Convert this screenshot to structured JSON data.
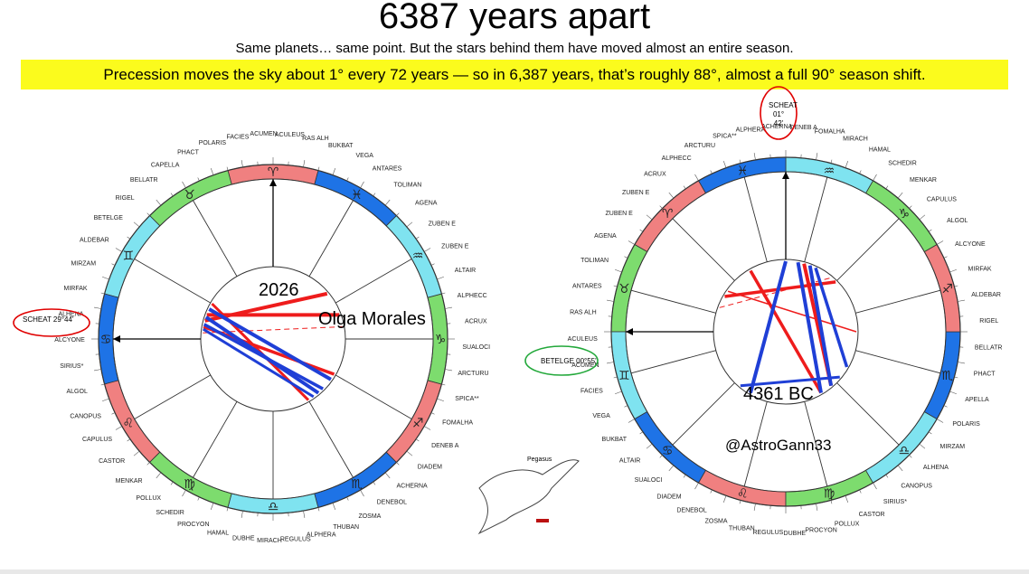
{
  "header": {
    "title": "6387 years apart",
    "subtitle": "Same planets… same point. But the stars behind them have moved almost an entire season.",
    "banner": "Precession moves the sky about 1° every 72 years — so in 6,387 years, that’s roughly 88°, almost a full 90° season shift."
  },
  "left_chart": {
    "year_label": "2026",
    "name_label": "Olga Morales",
    "highlight_star": "SCHEAT 29°44'",
    "stars": [
      "FACIES",
      "ACUMEN",
      "ACULEUS",
      "RAS ALH",
      "BUKBAT",
      "VEGA",
      "ANTARES",
      "TOLIMAN",
      "AGENA",
      "ZUBEN E",
      "ZUBEN E",
      "ALTAIR",
      "ALPHECC",
      "ACRUX",
      "SUALOCI",
      "ARCTURU",
      "SPICA**",
      "FOMALHA",
      "DENEB A",
      "DIADEM",
      "ACHERNA",
      "DENEBOL",
      "ZOSMA",
      "THUBAN",
      "ALPHERA",
      "REGULUS",
      "MIRACH",
      "DUBHE",
      "HAMAL",
      "PROCYON",
      "SCHEDIR",
      "POLLUX",
      "MENKAR",
      "CASTOR",
      "CAPULUS",
      "CANOPUS",
      "ALGOL",
      "SIRIUS*",
      "ALCYONE",
      "ALHENA",
      "MIRFAK",
      "MIRZAM",
      "ALDEBAR",
      "BETELGE",
      "RIGEL",
      "BELLATR",
      "CAPELLA",
      "PHACT",
      "POLARIS"
    ]
  },
  "right_chart": {
    "year_label": "4361 BC",
    "author_label": "@AstroGann33",
    "highlight_star_top": "SCHEAT 01° 42'",
    "highlight_star_left": "BETELGE 00°55'",
    "stars": [
      "ALPHERA",
      "ACHERNA",
      "DENEB A",
      "FOMALHA",
      "MIRACH",
      "HAMAL",
      "SCHEDIR",
      "MENKAR",
      "CAPULUS",
      "ALGOL",
      "ALCYONE",
      "MIRFAK",
      "ALDEBAR",
      "RIGEL",
      "BELLATR",
      "PHACT",
      "APELLA",
      "POLARIS",
      "MIRZAM",
      "ALHENA",
      "CANOPUS",
      "SIRIUS*",
      "CASTOR",
      "POLLUX",
      "PROCYON",
      "DUBHE",
      "REGULUS",
      "THUBAN",
      "ZOSMA",
      "DENEBOL",
      "DIADEM",
      "SUALOCI",
      "ALTAIR",
      "BUKBAT",
      "VEGA",
      "FACIES",
      "ACUMEN",
      "ACULEUS",
      "RAS ALH",
      "ANTARES",
      "TOLIMAN",
      "AGENA",
      "ZUBEN E",
      "ZUBEN E",
      "ACRUX",
      "ALPHECC",
      "ARCTURU",
      "SPICA**"
    ]
  },
  "inset": {
    "label": "Pegasus"
  },
  "colors": {
    "fire": "#f08080",
    "earth": "#7ddc6e",
    "air": "#7fe3f0",
    "water": "#1e73e6",
    "aspect_red": "#ee1c1c",
    "aspect_blue": "#1f3fd6",
    "highlight_circle_red": "#e00000",
    "highlight_circle_green": "#22a83a",
    "banner": "#fbfb1d"
  }
}
